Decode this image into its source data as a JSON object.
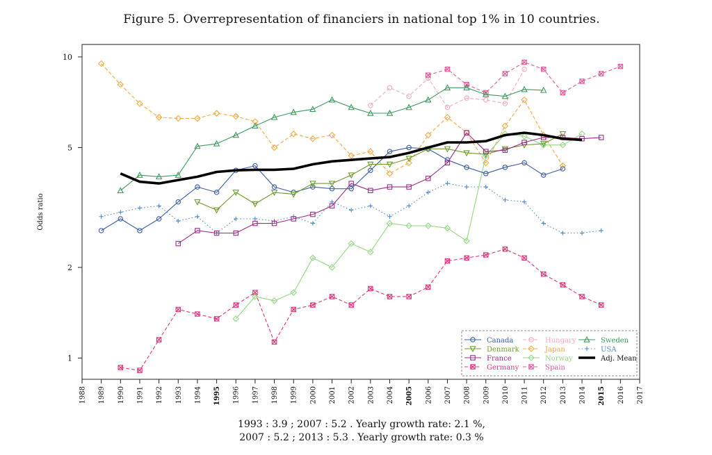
{
  "figure_title": "Figure 5. Overrepresentation of financiers in national top 1% in 10 countries.",
  "caption_line1": "1993 : 3.9  ; 2007 : 5.2  . Yearly growth rate: 2.1 %,",
  "caption_line2": "2007 : 5.2  ; 2013 : 5.3  . Yearly growth rate: 0.3 %",
  "chart_data": {
    "type": "line",
    "title": "Figure 5. Overrepresentation of financiers in national top 1% in 10 countries.",
    "xlabel": "",
    "ylabel": "Odds ratio",
    "y_scale": "log",
    "xlim": [
      1988,
      2017
    ],
    "ylim": [
      0.85,
      11
    ],
    "x_ticks": [
      1988,
      1989,
      1990,
      1991,
      1992,
      1993,
      1994,
      1995,
      1996,
      1997,
      1998,
      1999,
      2000,
      2001,
      2002,
      2003,
      2004,
      2005,
      2006,
      2007,
      2008,
      2009,
      2010,
      2011,
      2012,
      2013,
      2014,
      2015,
      2016,
      2017
    ],
    "bold_x_ticks": [
      1995,
      2005,
      2015
    ],
    "y_ticks": [
      1,
      2,
      5,
      10
    ],
    "grid": false,
    "legend_position": "bottom-right",
    "series": [
      {
        "name": "Canada",
        "color": "#3a5da8",
        "dash": "solid",
        "marker": "circle",
        "x": [
          1989,
          1990,
          1991,
          1992,
          1993,
          1994,
          1995,
          1996,
          1997,
          1998,
          1999,
          2000,
          2001,
          2002,
          2003,
          2004,
          2005,
          2006,
          2007,
          2008,
          2009,
          2010,
          2011,
          2012,
          2013
        ],
        "y": [
          2.65,
          2.9,
          2.65,
          2.9,
          3.3,
          3.7,
          3.55,
          4.2,
          4.35,
          3.7,
          3.55,
          3.7,
          3.65,
          3.65,
          4.2,
          4.85,
          5.0,
          4.95,
          4.55,
          4.3,
          4.1,
          4.3,
          4.45,
          4.05,
          4.25
        ]
      },
      {
        "name": "Denmark",
        "color": "#6d9c2c",
        "dash": "solid",
        "marker": "triangle-down",
        "x": [
          1994,
          1995,
          1996,
          1997,
          1998,
          1999,
          2000,
          2001,
          2002,
          2003,
          2004,
          2005,
          2006,
          2007,
          2008,
          2009,
          2010,
          2011,
          2012,
          2013
        ],
        "y": [
          3.3,
          3.1,
          3.55,
          3.25,
          3.55,
          3.5,
          3.8,
          3.8,
          4.05,
          4.4,
          4.4,
          4.6,
          4.95,
          4.95,
          4.8,
          4.75,
          4.95,
          5.1,
          5.15,
          5.55
        ]
      },
      {
        "name": "France",
        "color": "#9c2c8a",
        "dash": "solid",
        "marker": "square",
        "x": [
          1993,
          1994,
          1995,
          1996,
          1997,
          1998,
          1999,
          2000,
          2001,
          2002,
          2003,
          2004,
          2005,
          2006,
          2007,
          2008,
          2009,
          2010,
          2011,
          2012,
          2013,
          2014,
          2015
        ],
        "y": [
          2.4,
          2.65,
          2.6,
          2.6,
          2.8,
          2.8,
          2.9,
          3.0,
          3.2,
          3.8,
          3.6,
          3.7,
          3.7,
          3.95,
          4.45,
          5.6,
          4.85,
          4.9,
          5.2,
          5.4,
          5.4,
          5.35,
          5.4
        ]
      },
      {
        "name": "Germany",
        "color": "#e0357a",
        "dash": "dashed",
        "marker": "square-x",
        "x": [
          1990,
          1991,
          1992,
          1993,
          1994,
          1995,
          1996,
          1997,
          1998,
          1999,
          2000,
          2001,
          2002,
          2003,
          2004,
          2005,
          2006,
          2007,
          2008,
          2009,
          2010,
          2011,
          2012,
          2013,
          2014,
          2015
        ],
        "y": [
          0.93,
          0.91,
          1.15,
          1.45,
          1.4,
          1.35,
          1.5,
          1.65,
          1.13,
          1.45,
          1.5,
          1.6,
          1.5,
          1.7,
          1.6,
          1.6,
          1.72,
          2.1,
          2.15,
          2.2,
          2.3,
          2.15,
          1.9,
          1.75,
          1.6,
          1.5
        ]
      },
      {
        "name": "Hungary",
        "color": "#f4a9b8",
        "dash": "dashed",
        "marker": "circle",
        "x": [
          2003,
          2004,
          2005,
          2006,
          2007,
          2008,
          2009,
          2010,
          2011
        ],
        "y": [
          6.9,
          7.9,
          7.4,
          8.5,
          6.8,
          7.3,
          7.2,
          7.0,
          9.1
        ]
      },
      {
        "name": "Japan",
        "color": "#f5a73c",
        "dash": "dashed",
        "marker": "diamond",
        "x": [
          1989,
          1990,
          1991,
          1992,
          1993,
          1994,
          1995,
          1996,
          1997,
          1998,
          1999,
          2000,
          2001,
          2002,
          2003,
          2004,
          2005,
          2006,
          2007,
          2008,
          2009,
          2010,
          2011,
          2012,
          2013
        ],
        "y": [
          9.5,
          8.1,
          7.0,
          6.3,
          6.25,
          6.25,
          6.5,
          6.35,
          6.1,
          5.0,
          5.55,
          5.35,
          5.5,
          4.7,
          4.85,
          4.1,
          4.45,
          5.5,
          6.3,
          5.6,
          4.45,
          5.9,
          7.2,
          5.5,
          4.35
        ]
      },
      {
        "name": "Norway",
        "color": "#93d683",
        "dash": "solid",
        "marker": "diamond",
        "x": [
          1996,
          1997,
          1998,
          1999,
          2000,
          2001,
          2002,
          2003,
          2004,
          2005,
          2006,
          2007,
          2008,
          2009,
          2010,
          2011,
          2012,
          2013,
          2014
        ],
        "y": [
          1.35,
          1.6,
          1.55,
          1.65,
          2.15,
          2.0,
          2.4,
          2.25,
          2.8,
          2.75,
          2.75,
          2.7,
          2.45,
          4.7,
          5.55,
          5.45,
          5.1,
          5.1,
          5.55
        ]
      },
      {
        "name": "Spain",
        "color": "#e05c9a",
        "dash": "dashed",
        "marker": "square-x",
        "x": [
          2006,
          2007,
          2008,
          2009,
          2010,
          2011,
          2012,
          2013,
          2014,
          2015,
          2016
        ],
        "y": [
          8.7,
          9.1,
          8.1,
          7.6,
          8.8,
          9.6,
          9.1,
          7.6,
          8.3,
          8.8,
          9.3
        ]
      },
      {
        "name": "Sweden",
        "color": "#3e9a5c",
        "dash": "solid",
        "marker": "triangle-up",
        "x": [
          1990,
          1991,
          1992,
          1993,
          1994,
          1995,
          1996,
          1997,
          1998,
          1999,
          2000,
          2001,
          2002,
          2003,
          2004,
          2005,
          2006,
          2007,
          2008,
          2009,
          2010,
          2011,
          2012
        ],
        "y": [
          3.6,
          4.05,
          4.0,
          4.05,
          5.05,
          5.15,
          5.5,
          5.9,
          6.3,
          6.55,
          6.7,
          7.2,
          6.8,
          6.5,
          6.5,
          6.8,
          7.2,
          7.9,
          7.9,
          7.5,
          7.4,
          7.8,
          7.75
        ]
      },
      {
        "name": "USA",
        "color": "#4f8ac9",
        "dash": "dotted",
        "marker": "plus",
        "x": [
          1989,
          1990,
          1991,
          1992,
          1993,
          1994,
          1995,
          1996,
          1997,
          1998,
          1999,
          2000,
          2001,
          2002,
          2003,
          2004,
          2005,
          2006,
          2007,
          2008,
          2009,
          2010,
          2011,
          2012,
          2013,
          2014,
          2015
        ],
        "y": [
          2.95,
          3.05,
          3.15,
          3.2,
          2.85,
          2.95,
          2.6,
          2.9,
          2.9,
          2.85,
          2.95,
          2.8,
          3.3,
          3.1,
          3.2,
          2.95,
          3.2,
          3.55,
          3.8,
          3.7,
          3.7,
          3.35,
          3.3,
          2.8,
          2.6,
          2.6,
          2.65
        ]
      },
      {
        "name": "Adj. Mean",
        "color": "#000000",
        "dash": "solid",
        "marker": "none",
        "bold": true,
        "x": [
          1990,
          1991,
          1992,
          1993,
          1994,
          1995,
          1996,
          1997,
          1998,
          1999,
          2000,
          2001,
          2002,
          2003,
          2004,
          2005,
          2006,
          2007,
          2008,
          2009,
          2010,
          2011,
          2012,
          2013,
          2014
        ],
        "y": [
          4.1,
          3.85,
          3.8,
          3.9,
          4.0,
          4.15,
          4.2,
          4.22,
          4.22,
          4.25,
          4.4,
          4.5,
          4.55,
          4.6,
          4.65,
          4.8,
          5.0,
          5.2,
          5.2,
          5.25,
          5.5,
          5.6,
          5.5,
          5.35,
          5.3
        ]
      }
    ],
    "legend_columns": [
      [
        "Canada",
        "Denmark",
        "France",
        "Germany"
      ],
      [
        "Hungary",
        "Japan",
        "Norway",
        "Spain"
      ],
      [
        "Sweden",
        "USA",
        "Adj. Mean"
      ]
    ]
  }
}
